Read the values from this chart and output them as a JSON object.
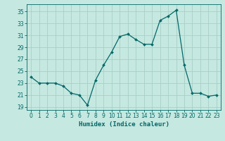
{
  "title": "",
  "xlabel": "Humidex (Indice chaleur)",
  "ylabel": "",
  "bg_color": "#c5e8e0",
  "grid_color": "#a8cfc8",
  "line_color": "#006868",
  "marker_color": "#006868",
  "xlim": [
    -0.5,
    23.5
  ],
  "ylim": [
    18.5,
    36.2
  ],
  "xticks": [
    0,
    1,
    2,
    3,
    4,
    5,
    6,
    7,
    8,
    9,
    10,
    11,
    12,
    13,
    14,
    15,
    16,
    17,
    18,
    19,
    20,
    21,
    22,
    23
  ],
  "yticks": [
    19,
    21,
    23,
    25,
    27,
    29,
    31,
    33,
    35
  ],
  "hours": [
    0,
    1,
    2,
    3,
    4,
    5,
    6,
    7,
    8,
    9,
    10,
    11,
    12,
    13,
    14,
    15,
    16,
    17,
    18,
    19,
    20,
    21,
    22,
    23
  ],
  "values": [
    24.0,
    23.0,
    23.0,
    23.0,
    22.5,
    21.3,
    21.0,
    19.3,
    23.5,
    26.0,
    28.2,
    30.8,
    31.2,
    30.3,
    29.5,
    29.5,
    33.5,
    34.2,
    35.2,
    26.0,
    21.3,
    21.3,
    20.8,
    21.0
  ]
}
